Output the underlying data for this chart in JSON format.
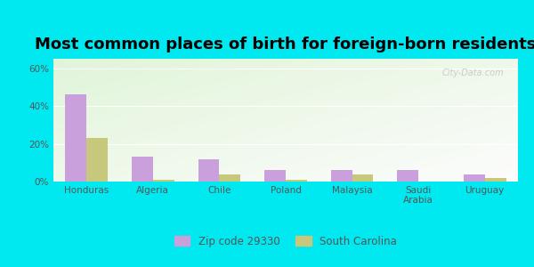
{
  "title": "Most common places of birth for foreign-born residents",
  "categories": [
    "Honduras",
    "Algeria",
    "Chile",
    "Poland",
    "Malaysia",
    "Saudi\nArabia",
    "Uruguay"
  ],
  "zip_values": [
    46,
    13,
    12,
    6,
    6,
    6,
    4
  ],
  "sc_values": [
    23,
    1,
    4,
    1,
    4,
    0,
    2
  ],
  "zip_color": "#c9a0dc",
  "sc_color": "#c8c87d",
  "zip_label": "Zip code 29330",
  "sc_label": "South Carolina",
  "yticks": [
    0,
    20,
    40,
    60
  ],
  "ytick_labels": [
    "0%",
    "20%",
    "40%",
    "60%"
  ],
  "ylim": [
    0,
    65
  ],
  "background_outer": "#00e8f0",
  "title_fontsize": 13,
  "bar_width": 0.32
}
